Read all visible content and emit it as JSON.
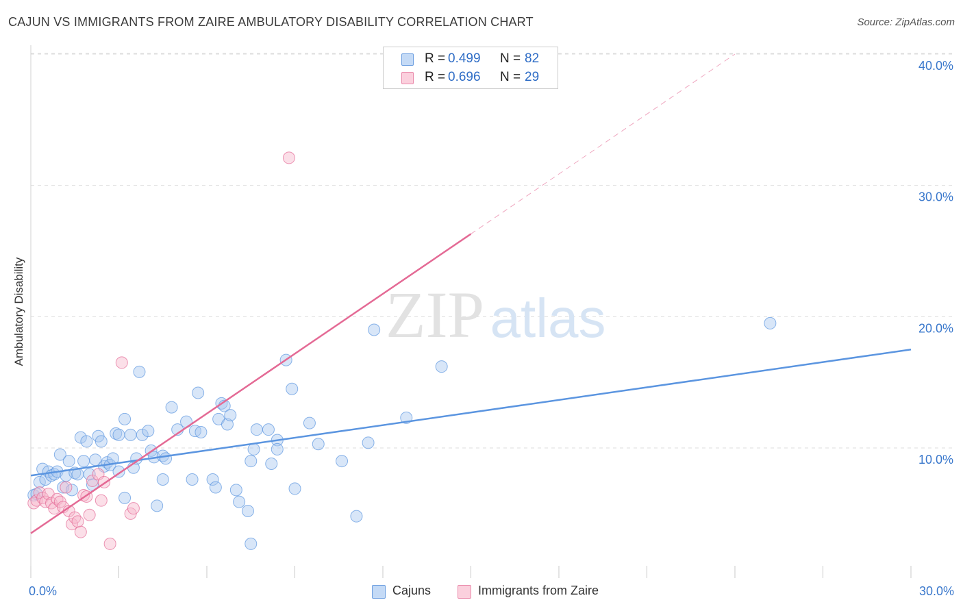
{
  "header": {
    "title": "CAJUN VS IMMIGRANTS FROM ZAIRE AMBULATORY DISABILITY CORRELATION CHART",
    "source": "Source: ZipAtlas.com"
  },
  "watermark": {
    "zip": "ZIP",
    "atlas": "atlas"
  },
  "legend": {
    "rows": [
      {
        "r_label": "R =",
        "r_value": "0.499",
        "n_label": "N =",
        "n_value": "82",
        "color": "#a8c8f0"
      },
      {
        "r_label": "R =",
        "r_value": "0.696",
        "n_label": "N =",
        "n_value": "29",
        "color": "#f7b8cc"
      }
    ]
  },
  "bottom_legend": [
    {
      "label": "Cajuns",
      "color": "#a8c8f0"
    },
    {
      "label": "Immigrants from Zaire",
      "color": "#f7b8cc"
    }
  ],
  "chart_data": {
    "type": "scatter",
    "title": "CAJUN VS IMMIGRANTS FROM ZAIRE AMBULATORY DISABILITY CORRELATION CHART",
    "ylabel": "Ambulatory Disability",
    "xlabel": "",
    "xlim": [
      0,
      30
    ],
    "ylim": [
      0,
      42
    ],
    "x_tick_labels": [
      {
        "value": 0,
        "label": "0.0%"
      },
      {
        "value": 30,
        "label": "30.0%"
      }
    ],
    "x_minor_ticks": [
      0,
      3,
      6,
      9,
      12,
      15,
      18,
      21,
      24,
      27,
      30
    ],
    "y_ticks": [
      {
        "value": 10,
        "label": "10.0%"
      },
      {
        "value": 20,
        "label": "20.0%"
      },
      {
        "value": 30,
        "label": "30.0%"
      },
      {
        "value": 40,
        "label": "40.0%"
      }
    ],
    "grid": true,
    "series": [
      {
        "name": "Cajuns",
        "color": "#5b95e0",
        "fill": "#a8c8f0",
        "trend": {
          "x0": 0,
          "y0": 7.9,
          "x1": 30,
          "y1": 17.5,
          "dashed_to": null
        },
        "points": [
          [
            0.1,
            6.4
          ],
          [
            0.2,
            6.5
          ],
          [
            0.3,
            7.4
          ],
          [
            0.4,
            8.4
          ],
          [
            0.5,
            7.6
          ],
          [
            0.6,
            8.2
          ],
          [
            0.7,
            7.9
          ],
          [
            0.8,
            8.0
          ],
          [
            0.9,
            8.2
          ],
          [
            1.0,
            9.5
          ],
          [
            1.1,
            7.0
          ],
          [
            1.2,
            7.9
          ],
          [
            1.3,
            9.0
          ],
          [
            1.4,
            6.8
          ],
          [
            1.5,
            8.1
          ],
          [
            1.6,
            8.0
          ],
          [
            1.7,
            10.8
          ],
          [
            1.8,
            9.0
          ],
          [
            1.9,
            10.5
          ],
          [
            2.0,
            8.0
          ],
          [
            2.1,
            7.2
          ],
          [
            2.2,
            9.1
          ],
          [
            2.3,
            10.9
          ],
          [
            2.4,
            10.5
          ],
          [
            2.5,
            8.6
          ],
          [
            2.6,
            8.9
          ],
          [
            2.7,
            8.7
          ],
          [
            2.8,
            9.2
          ],
          [
            2.9,
            11.1
          ],
          [
            3.0,
            8.2
          ],
          [
            3.0,
            11.0
          ],
          [
            3.2,
            6.2
          ],
          [
            3.2,
            12.2
          ],
          [
            3.4,
            11.0
          ],
          [
            3.5,
            8.5
          ],
          [
            3.6,
            9.2
          ],
          [
            3.7,
            15.8
          ],
          [
            3.8,
            11.0
          ],
          [
            4.0,
            11.3
          ],
          [
            4.1,
            9.8
          ],
          [
            4.2,
            9.3
          ],
          [
            4.3,
            5.6
          ],
          [
            4.5,
            9.4
          ],
          [
            4.5,
            7.6
          ],
          [
            4.6,
            9.2
          ],
          [
            4.8,
            13.1
          ],
          [
            5.0,
            11.4
          ],
          [
            5.3,
            12.0
          ],
          [
            5.5,
            7.6
          ],
          [
            5.6,
            11.3
          ],
          [
            5.7,
            14.2
          ],
          [
            5.8,
            11.2
          ],
          [
            6.2,
            7.6
          ],
          [
            6.3,
            7.0
          ],
          [
            6.4,
            12.2
          ],
          [
            6.5,
            13.4
          ],
          [
            6.6,
            13.2
          ],
          [
            6.7,
            11.8
          ],
          [
            6.8,
            12.5
          ],
          [
            7.0,
            6.8
          ],
          [
            7.1,
            5.9
          ],
          [
            7.4,
            5.2
          ],
          [
            7.5,
            9.0
          ],
          [
            7.6,
            9.9
          ],
          [
            7.7,
            11.4
          ],
          [
            8.1,
            11.4
          ],
          [
            8.2,
            8.8
          ],
          [
            8.4,
            10.6
          ],
          [
            8.4,
            9.9
          ],
          [
            8.7,
            16.7
          ],
          [
            8.9,
            14.5
          ],
          [
            9.0,
            6.9
          ],
          [
            9.5,
            11.9
          ],
          [
            9.8,
            10.3
          ],
          [
            10.6,
            9.0
          ],
          [
            11.1,
            4.8
          ],
          [
            11.5,
            10.4
          ],
          [
            11.7,
            19.0
          ],
          [
            12.8,
            12.3
          ],
          [
            14.0,
            16.2
          ],
          [
            25.2,
            19.5
          ],
          [
            7.5,
            2.7
          ]
        ]
      },
      {
        "name": "Immigrants from Zaire",
        "color": "#e46a95",
        "fill": "#f7b8cc",
        "trend": {
          "x0": 0,
          "y0": 3.5,
          "x1": 15,
          "y1": 26.3,
          "dashed_to": {
            "x": 24,
            "y": 40
          }
        },
        "points": [
          [
            0.1,
            5.8
          ],
          [
            0.2,
            6.0
          ],
          [
            0.3,
            6.6
          ],
          [
            0.4,
            6.2
          ],
          [
            0.5,
            5.9
          ],
          [
            0.6,
            6.5
          ],
          [
            0.7,
            5.8
          ],
          [
            0.8,
            5.4
          ],
          [
            0.9,
            6.1
          ],
          [
            1.0,
            5.9
          ],
          [
            1.1,
            5.5
          ],
          [
            1.2,
            7.0
          ],
          [
            1.3,
            5.2
          ],
          [
            1.4,
            4.2
          ],
          [
            1.5,
            4.7
          ],
          [
            1.6,
            4.4
          ],
          [
            1.7,
            3.6
          ],
          [
            1.8,
            6.4
          ],
          [
            1.9,
            6.3
          ],
          [
            2.0,
            4.9
          ],
          [
            2.1,
            7.5
          ],
          [
            2.3,
            8.0
          ],
          [
            2.4,
            6.0
          ],
          [
            2.5,
            7.4
          ],
          [
            2.7,
            2.7
          ],
          [
            3.1,
            16.5
          ],
          [
            3.4,
            5.0
          ],
          [
            3.5,
            5.4
          ],
          [
            8.8,
            32.1
          ]
        ]
      }
    ]
  }
}
